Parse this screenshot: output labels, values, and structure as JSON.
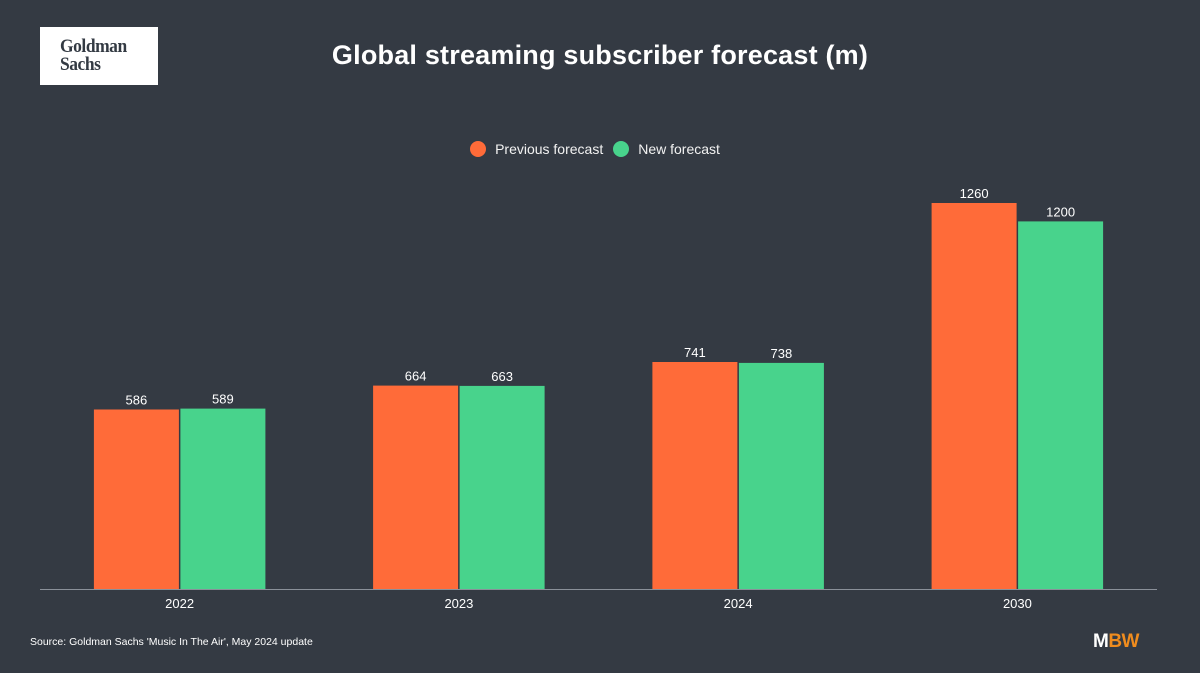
{
  "brand": {
    "logo_line1": "Goldman",
    "logo_line2": "Sachs"
  },
  "footer": {
    "source": "Source: Goldman Sachs 'Music In The Air', May 2024 update",
    "publisher_logo_m": "M",
    "publisher_logo_bw": "BW"
  },
  "colors": {
    "background": "#343a43",
    "previous_forecast": "#ff6b39",
    "new_forecast": "#48d38c",
    "text": "#ffffff",
    "axis": "#8a9099",
    "publisher_accent": "#f08c1e"
  },
  "chart_data": {
    "type": "bar",
    "title": "Global streaming subscriber forecast (m)",
    "categories": [
      "2022",
      "2023",
      "2024",
      "2030"
    ],
    "series": [
      {
        "name": "Previous forecast",
        "values": [
          586,
          664,
          741,
          1260
        ]
      },
      {
        "name": "New forecast",
        "values": [
          589,
          663,
          738,
          1200
        ]
      }
    ],
    "data_labels": [
      [
        "586",
        "664",
        "741",
        "1260"
      ],
      [
        "589",
        "663",
        "738",
        "1200"
      ]
    ],
    "xlabel": "",
    "ylabel": "",
    "ylim": [
      0,
      1260
    ],
    "grid": false,
    "y_axis_visible": false,
    "legend": "top-center"
  }
}
